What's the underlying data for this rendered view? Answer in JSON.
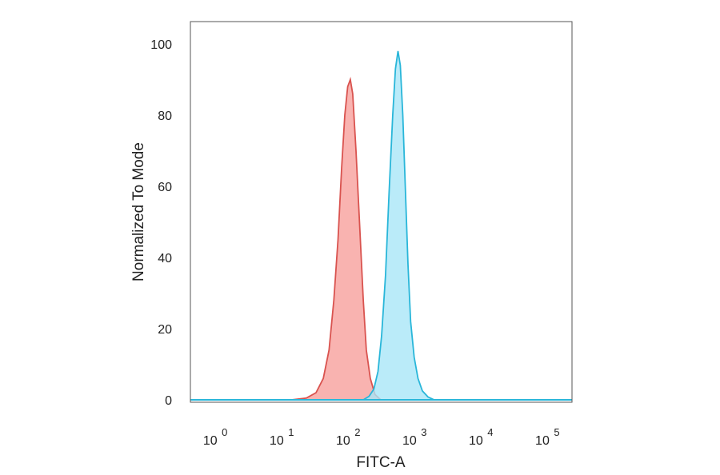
{
  "chart_data": {
    "type": "area",
    "title": "",
    "xlabel": "FITC-A",
    "ylabel": "Normalized To Mode",
    "x_scale": "log",
    "xlim": [
      0.45,
      250000
    ],
    "ylim": [
      0,
      100
    ],
    "y_ticks": [
      0,
      20,
      40,
      60,
      80,
      100
    ],
    "x_ticks": [
      {
        "value": 1,
        "base": "10",
        "exp": "0"
      },
      {
        "value": 10,
        "base": "10",
        "exp": "1"
      },
      {
        "value": 100,
        "base": "10",
        "exp": "2"
      },
      {
        "value": 1000,
        "base": "10",
        "exp": "3"
      },
      {
        "value": 10000,
        "base": "10",
        "exp": "4"
      },
      {
        "value": 100000,
        "base": "10",
        "exp": "5"
      }
    ],
    "grid": false,
    "series": [
      {
        "color": "#d9534f",
        "fill": "#f7a09c",
        "points": [
          [
            15,
            0
          ],
          [
            25,
            0.5
          ],
          [
            35,
            2
          ],
          [
            45,
            6
          ],
          [
            55,
            14
          ],
          [
            65,
            28
          ],
          [
            75,
            45
          ],
          [
            85,
            65
          ],
          [
            95,
            80
          ],
          [
            105,
            88
          ],
          [
            115,
            90
          ],
          [
            125,
            86
          ],
          [
            140,
            70
          ],
          [
            160,
            48
          ],
          [
            180,
            28
          ],
          [
            200,
            14
          ],
          [
            230,
            6
          ],
          [
            270,
            1.5
          ],
          [
            330,
            0
          ]
        ]
      },
      {
        "color": "#29b6d9",
        "fill": "#a9e6f7",
        "points": [
          [
            180,
            0
          ],
          [
            220,
            1
          ],
          [
            260,
            3
          ],
          [
            300,
            8
          ],
          [
            340,
            18
          ],
          [
            390,
            35
          ],
          [
            440,
            58
          ],
          [
            500,
            80
          ],
          [
            550,
            93
          ],
          [
            600,
            98
          ],
          [
            650,
            94
          ],
          [
            710,
            80
          ],
          [
            780,
            58
          ],
          [
            850,
            38
          ],
          [
            930,
            22
          ],
          [
            1050,
            12
          ],
          [
            1200,
            6
          ],
          [
            1400,
            2.5
          ],
          [
            1700,
            0.8
          ],
          [
            2100,
            0
          ]
        ]
      }
    ]
  }
}
